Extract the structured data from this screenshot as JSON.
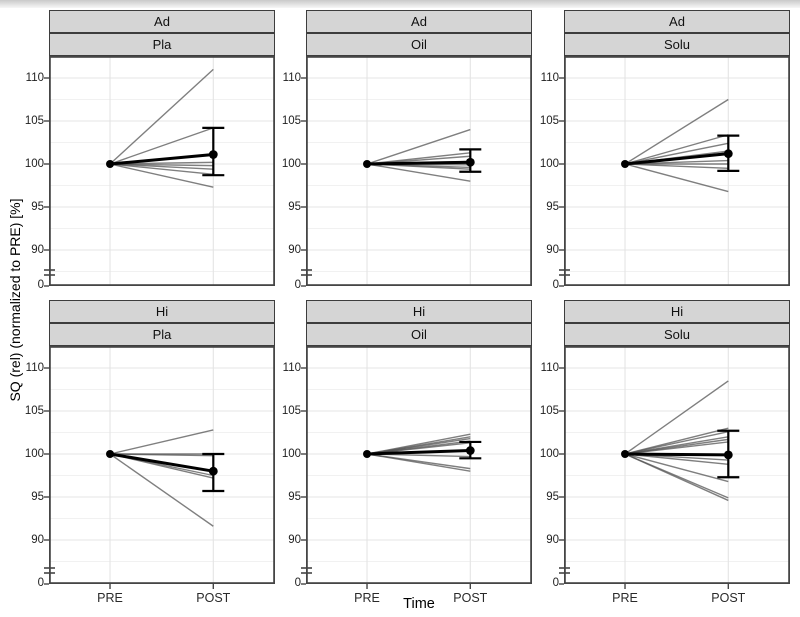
{
  "chart_data": {
    "type": "line",
    "title": "",
    "xlabel": "Time",
    "ylabel": "SQ (rel) (normalized to PRE) [%]",
    "x_categories": [
      "PRE",
      "POST"
    ],
    "y_ticks": [
      110,
      105,
      100,
      95,
      90
    ],
    "y_break_tick": "0",
    "y_minor_ticks": [
      107.5,
      102.5,
      97.5,
      92.5,
      87.5
    ],
    "axis_break": true,
    "ylim_main": [
      86,
      112.5
    ],
    "grid": true,
    "legend": "none",
    "pre_value": 100,
    "facet_rows": [
      "Ad",
      "Hi"
    ],
    "facet_cols": [
      "Pla",
      "Oil",
      "Solu"
    ],
    "facets": [
      {
        "row": "Ad",
        "col": "Pla",
        "post_values": [
          111.0,
          104.2,
          100.2,
          99.8,
          99.4,
          98.8,
          97.3
        ],
        "mean_post": 101.1,
        "err_low": 98.7,
        "err_high": 104.2
      },
      {
        "row": "Ad",
        "col": "Oil",
        "post_values": [
          104.0,
          101.3,
          100.9,
          100.3,
          100.1,
          99.9,
          99.6,
          99.4,
          98.0
        ],
        "mean_post": 100.2,
        "err_low": 99.1,
        "err_high": 101.7
      },
      {
        "row": "Ad",
        "col": "Solu",
        "post_values": [
          107.5,
          103.4,
          102.4,
          101.5,
          101.3,
          100.4,
          100.0,
          99.5,
          96.8
        ],
        "mean_post": 101.2,
        "err_low": 99.2,
        "err_high": 103.3
      },
      {
        "row": "Hi",
        "col": "Pla",
        "post_values": [
          102.8,
          100.0,
          99.8,
          97.5,
          97.2,
          91.6
        ],
        "mean_post": 98.0,
        "err_low": 95.7,
        "err_high": 100.0
      },
      {
        "row": "Hi",
        "col": "Oil",
        "post_values": [
          102.3,
          102.0,
          101.8,
          101.5,
          101.3,
          99.7,
          98.3,
          98.0
        ],
        "mean_post": 100.4,
        "err_low": 99.5,
        "err_high": 101.4
      },
      {
        "row": "Hi",
        "col": "Solu",
        "post_values": [
          108.5,
          103.0,
          102.6,
          102.0,
          101.7,
          101.4,
          99.3,
          98.8,
          96.8,
          94.9,
          94.6
        ],
        "mean_post": 99.9,
        "err_low": 97.3,
        "err_high": 102.7
      }
    ],
    "colors": {
      "strip_fill": "#d5d5d5",
      "strip_border": "#3d3d3d",
      "panel_border": "#454545",
      "grid_major": "#e4e4e4",
      "grid_minor": "#f1f1f1",
      "subject_line": "#4f4f4f",
      "mean_line": "#000000",
      "background": "#ffffff"
    }
  }
}
